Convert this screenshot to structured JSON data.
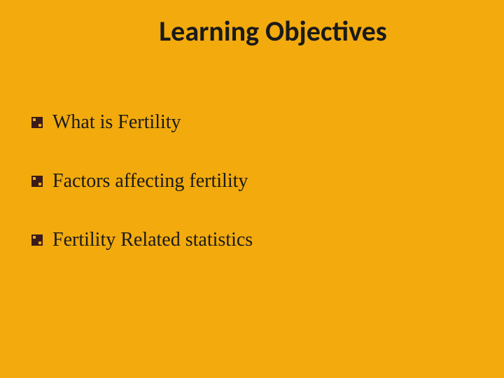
{
  "slide": {
    "title": "Learning Objectives",
    "background_color": "#f2aa0d",
    "title_fontsize": 40,
    "title_color": "#1a1a1a",
    "title_font_weight": 700,
    "bullet_items": [
      {
        "text": "What is Fertility"
      },
      {
        "text": "Factors affecting fertility"
      },
      {
        "text": "Fertility Related statistics"
      }
    ],
    "bullet_fontsize": 28,
    "bullet_color": "#1a1a1a",
    "bullet_icon_color": "#3a1a1a",
    "bullet_spacing": 52
  }
}
